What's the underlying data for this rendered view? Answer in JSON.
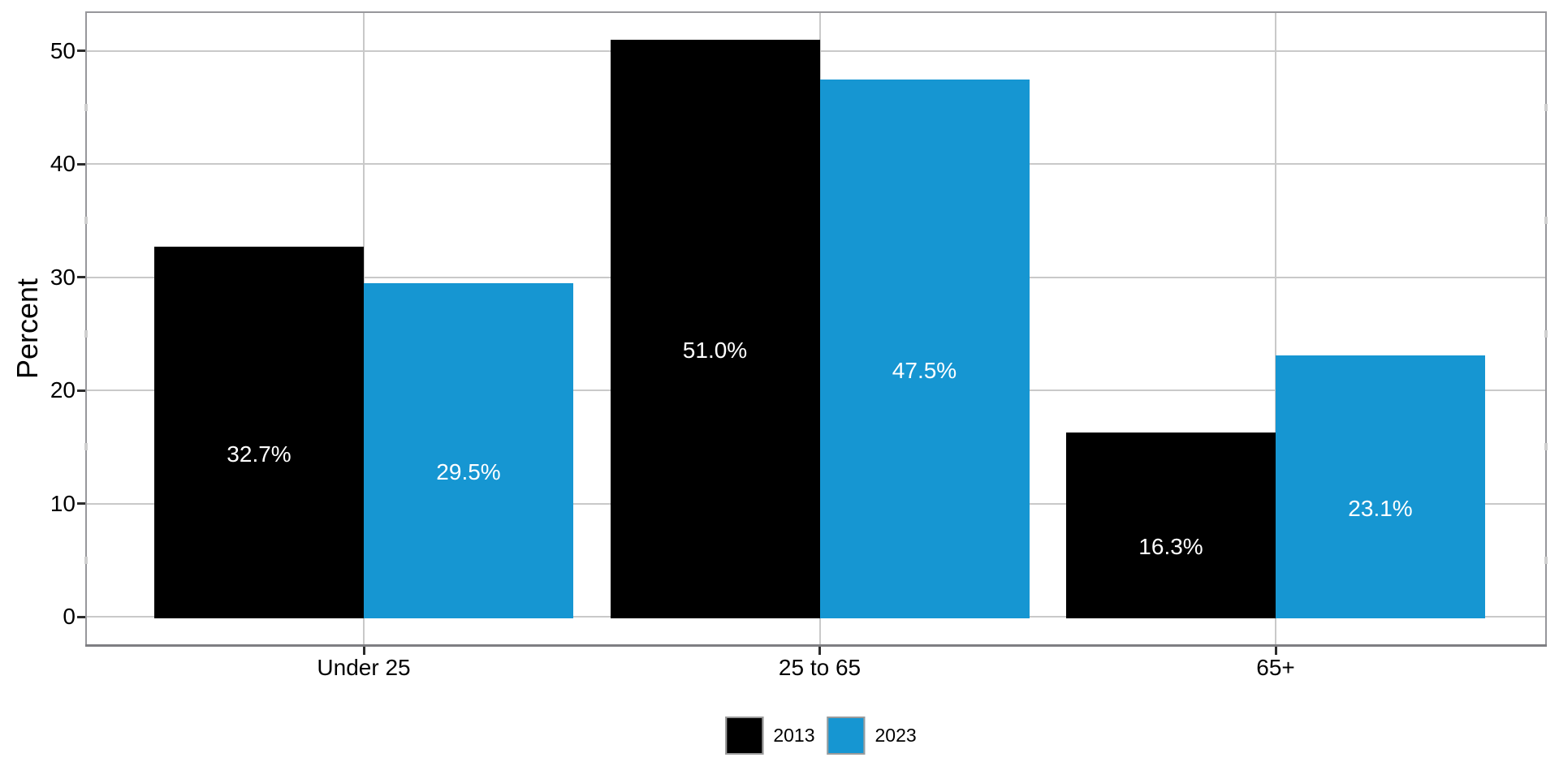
{
  "chart_data": {
    "type": "bar",
    "title": "",
    "xlabel": "",
    "ylabel": "Percent",
    "categories": [
      "Under 25",
      "25 to 65",
      "65+"
    ],
    "series": [
      {
        "name": "2013",
        "color": "#000000",
        "values": [
          32.7,
          51.0,
          16.3
        ],
        "data_labels": [
          "32.7%",
          "51.0%",
          "16.3%"
        ]
      },
      {
        "name": "2023",
        "color": "#1696d2",
        "values": [
          29.5,
          47.5,
          23.1
        ],
        "data_labels": [
          "29.5%",
          "47.5%",
          "23.1%"
        ]
      }
    ],
    "y_ticks": [
      0,
      10,
      20,
      30,
      40,
      50
    ],
    "y_minor_ticks": [
      5,
      15,
      25,
      35,
      45
    ],
    "ylim": [
      -2.65,
      53.5
    ],
    "grid": "major-horizontal-and-category-vertical",
    "legend_position": "bottom-center",
    "bar_label_color": "#ffffff"
  },
  "styles": {
    "background": "#ffffff",
    "grid_color": "#c9c9c9",
    "panel_border_color": "#97979b",
    "axis_line_color": "#7e7e82",
    "tick_color": "#2b2b2b",
    "minor_tick_color": "#cfcfcf",
    "text_color": "#000000",
    "legend_key_border_color": "#9b9b9b"
  }
}
